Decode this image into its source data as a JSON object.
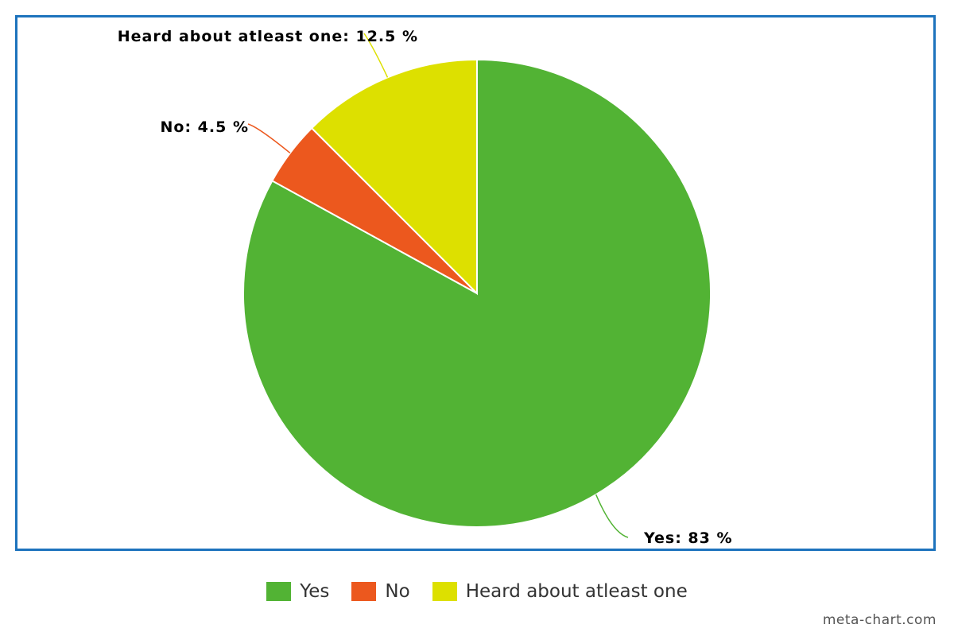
{
  "chart_data": {
    "type": "pie",
    "start_angle_deg": 0,
    "direction": "clockwise",
    "slices": [
      {
        "label": "Yes",
        "value": 83,
        "color": "#52b334",
        "label_text": "Yes: 83 %"
      },
      {
        "label": "No",
        "value": 4.5,
        "color": "#ec581e",
        "label_text": "No: 4.5 %"
      },
      {
        "label": "Heard about atleast one",
        "value": 12.5,
        "color": "#dde000",
        "label_text": "Heard about atleast one: 12.5 %"
      }
    ],
    "legend_placement": "bottom-center"
  },
  "frame": {
    "border_color": "#1d73bd"
  },
  "watermark": "meta-chart.com"
}
